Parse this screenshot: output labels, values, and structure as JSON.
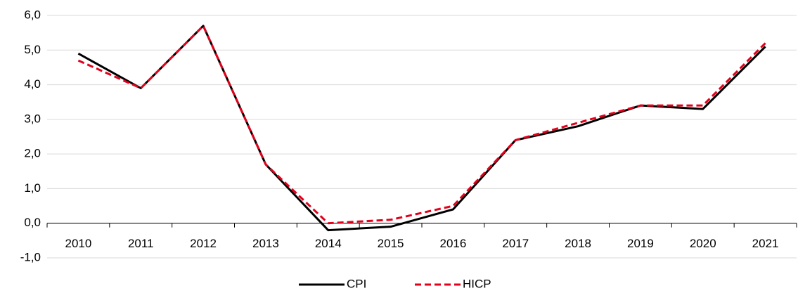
{
  "chart_data": {
    "type": "line",
    "categories": [
      "2010",
      "2011",
      "2012",
      "2013",
      "2014",
      "2015",
      "2016",
      "2017",
      "2018",
      "2019",
      "2020",
      "2021"
    ],
    "series": [
      {
        "name": "CPI",
        "color": "#000000",
        "values": [
          4.9,
          3.9,
          5.7,
          1.7,
          -0.2,
          -0.1,
          0.4,
          2.4,
          2.8,
          3.4,
          3.3,
          5.1
        ]
      },
      {
        "name": "HICP",
        "color": "#e3001b",
        "dashed": true,
        "values": [
          4.7,
          3.9,
          5.7,
          1.7,
          0.0,
          0.1,
          0.5,
          2.4,
          2.9,
          3.4,
          3.4,
          5.2
        ]
      }
    ],
    "ylim": [
      -1,
      6
    ],
    "yticks": [
      {
        "value": -1,
        "label": "-1,0"
      },
      {
        "value": 0,
        "label": "0,0"
      },
      {
        "value": 1,
        "label": "1,0"
      },
      {
        "value": 2,
        "label": "2,0"
      },
      {
        "value": 3,
        "label": "3,0"
      },
      {
        "value": 4,
        "label": "4,0"
      },
      {
        "value": 5,
        "label": "5,0"
      },
      {
        "value": 6,
        "label": "6,0"
      }
    ],
    "grid": true,
    "legend": "bottom"
  }
}
